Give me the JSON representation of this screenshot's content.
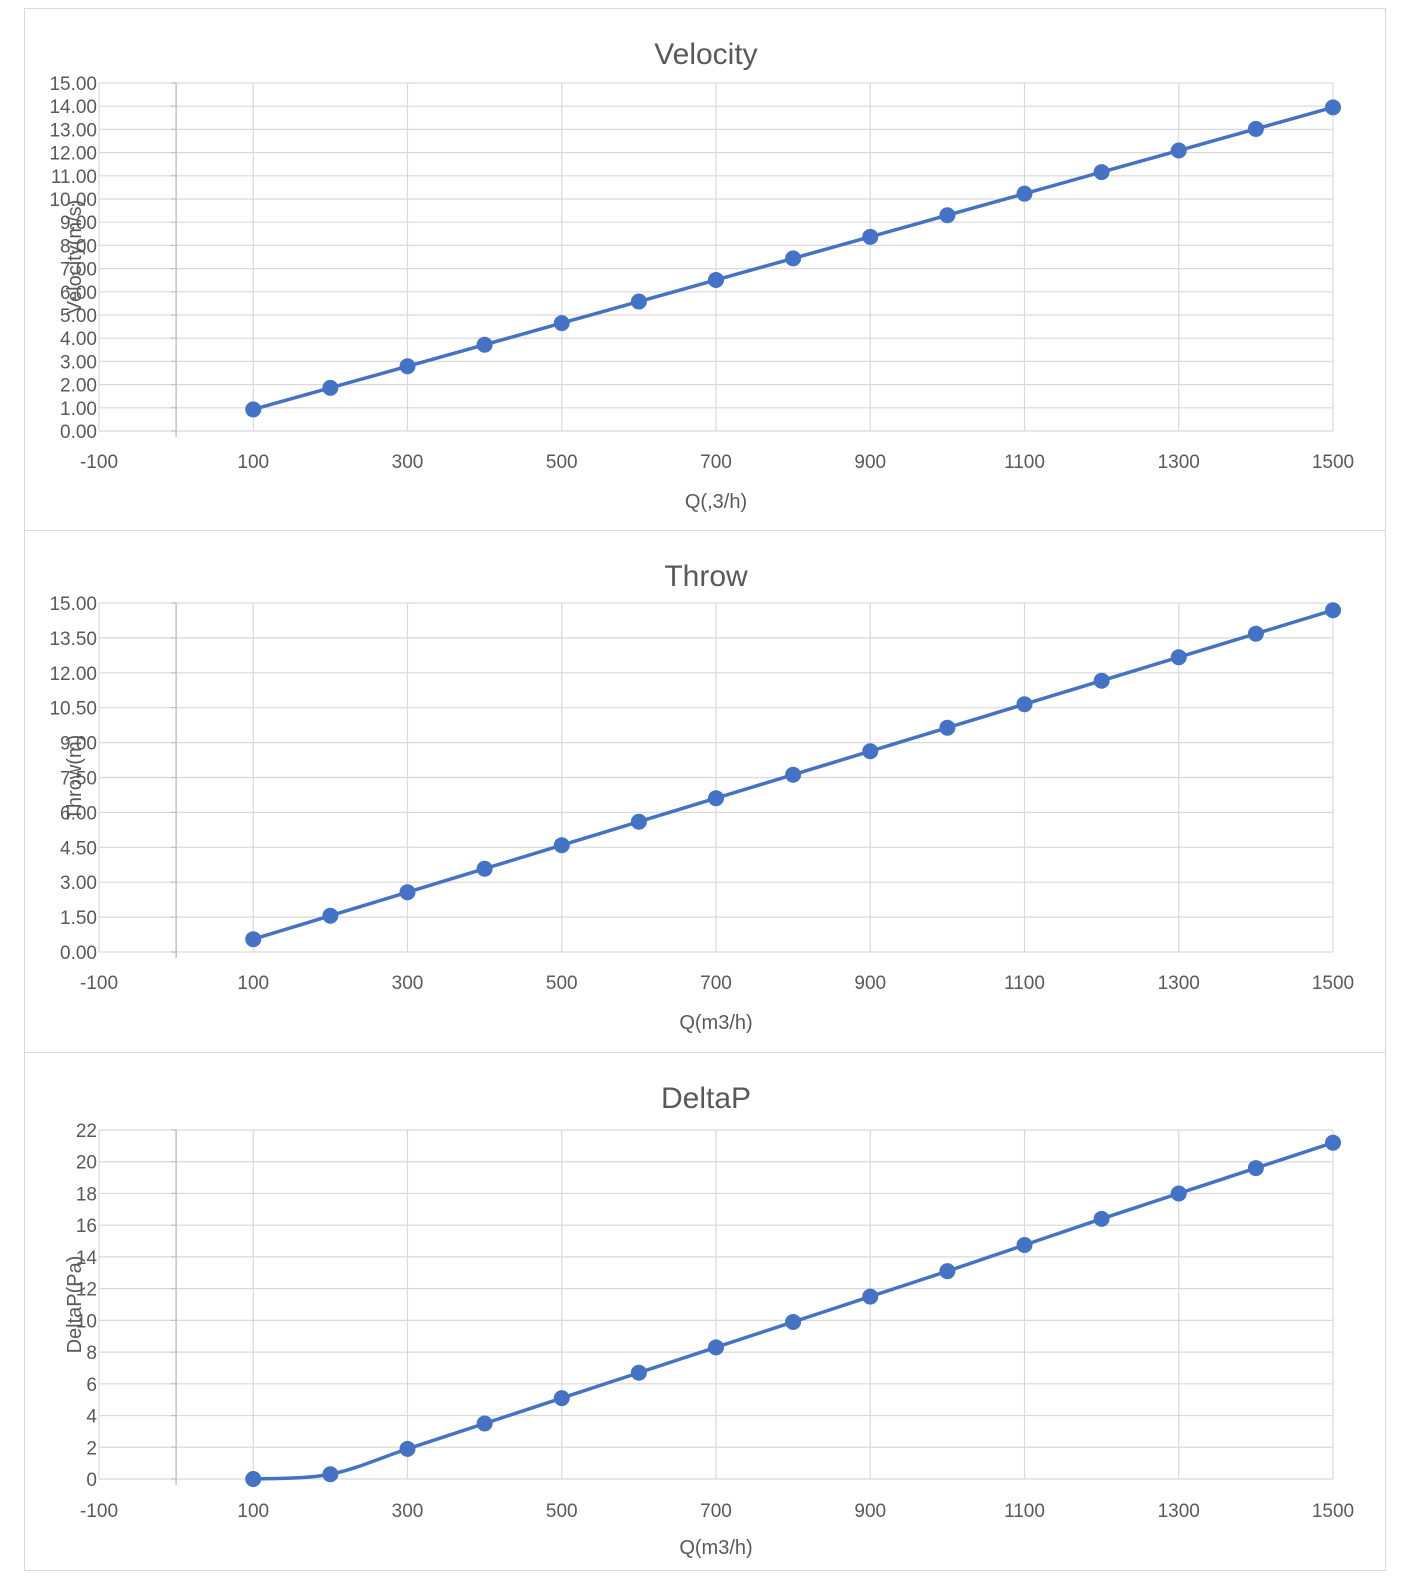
{
  "colors": {
    "series": "#4472C4",
    "grid": "#d9d9d9",
    "text": "#595959"
  },
  "chart_data": [
    {
      "type": "scatter",
      "title": "Velocity",
      "xlabel": "Q(,3/h)",
      "ylabel": "Velocity(m/s)",
      "xlim": [
        -100,
        1500
      ],
      "ylim": [
        0,
        15
      ],
      "x_ticks": [
        "-100",
        "100",
        "300",
        "500",
        "700",
        "900",
        "1100",
        "1300",
        "1500"
      ],
      "y_ticks": [
        "0.00",
        "1.00",
        "2.00",
        "3.00",
        "4.00",
        "5.00",
        "6.00",
        "7.00",
        "8.00",
        "9.00",
        "10.00",
        "11.00",
        "12.00",
        "13.00",
        "14.00",
        "15.00"
      ],
      "grid": true,
      "smooth": true,
      "series": [
        {
          "x": [
            100,
            200,
            300,
            400,
            500,
            600,
            700,
            800,
            900,
            1000,
            1100,
            1200,
            1300,
            1400,
            1500
          ],
          "y": [
            0.93,
            1.86,
            2.79,
            3.72,
            4.65,
            5.58,
            6.51,
            7.44,
            8.37,
            9.3,
            10.23,
            11.16,
            12.09,
            13.02,
            13.95
          ]
        }
      ]
    },
    {
      "type": "scatter",
      "title": "Throw",
      "xlabel": "Q(m3/h)",
      "ylabel": "Throw(m)",
      "xlim": [
        -100,
        1500
      ],
      "ylim": [
        0,
        15
      ],
      "x_ticks": [
        "-100",
        "100",
        "300",
        "500",
        "700",
        "900",
        "1100",
        "1300",
        "1500"
      ],
      "y_ticks": [
        "0.00",
        "1.50",
        "3.00",
        "4.50",
        "6.00",
        "7.50",
        "9.00",
        "10.50",
        "12.00",
        "13.50",
        "15.00"
      ],
      "grid": true,
      "smooth": true,
      "series": [
        {
          "x": [
            100,
            200,
            300,
            400,
            500,
            600,
            700,
            800,
            900,
            1000,
            1100,
            1200,
            1300,
            1400,
            1500
          ],
          "y": [
            0.55,
            1.56,
            2.57,
            3.58,
            4.59,
            5.6,
            6.61,
            7.62,
            8.63,
            9.64,
            10.65,
            11.66,
            12.67,
            13.68,
            14.69
          ]
        }
      ]
    },
    {
      "type": "scatter",
      "title": "DeltaP",
      "xlabel": "Q(m3/h)",
      "ylabel": "DeltaP(Pa)",
      "xlim": [
        -100,
        1500
      ],
      "ylim": [
        0,
        22
      ],
      "x_ticks": [
        "-100",
        "100",
        "300",
        "500",
        "700",
        "900",
        "1100",
        "1300",
        "1500"
      ],
      "y_ticks": [
        "0",
        "2",
        "4",
        "6",
        "8",
        "10",
        "12",
        "14",
        "16",
        "18",
        "20",
        "22"
      ],
      "grid": true,
      "smooth": true,
      "series": [
        {
          "x": [
            100,
            200,
            300,
            400,
            500,
            600,
            700,
            800,
            900,
            1000,
            1100,
            1200,
            1300,
            1400,
            1500
          ],
          "y": [
            0.0,
            0.3,
            1.9,
            3.5,
            5.1,
            6.7,
            8.3,
            9.9,
            11.5,
            13.1,
            14.75,
            16.4,
            18.0,
            19.6,
            21.2
          ]
        }
      ]
    }
  ]
}
